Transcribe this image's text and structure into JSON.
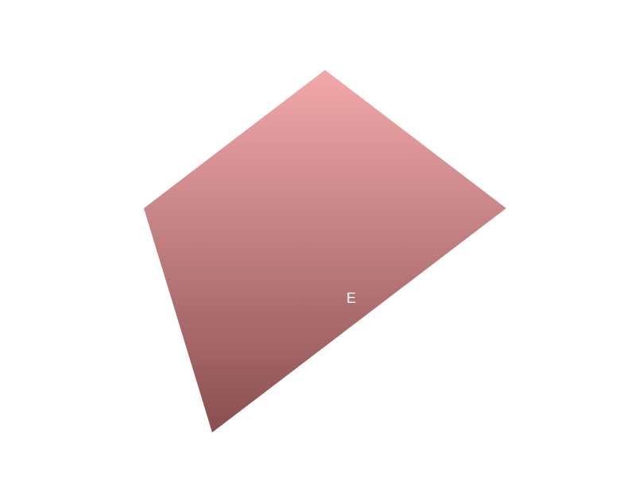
{
  "figure": {
    "shape": "quadrilateral",
    "label": "E",
    "colors": {
      "background": "#ffffff",
      "fill_top": "#f2a9aa",
      "fill_bottom": "#8a4f50",
      "label": "#ffffff"
    }
  }
}
